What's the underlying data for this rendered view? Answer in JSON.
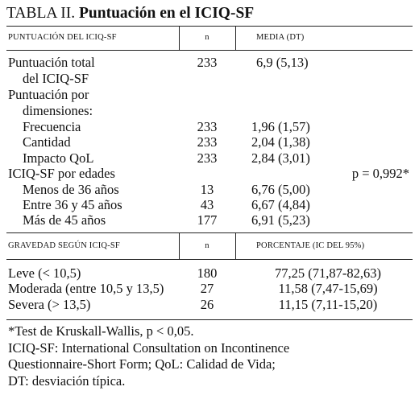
{
  "title": {
    "label": "TABLA II.",
    "text": "Puntuación en el ICIQ-SF"
  },
  "table1": {
    "header": [
      "PUNTUACIÓN DEL ICIQ-SF",
      "n",
      "MEDIA (DT)"
    ],
    "rows": [
      {
        "label": "Puntuación total",
        "n": "233",
        "value": "6,9 (5,13)"
      },
      {
        "label": "del ICIQ-SF"
      },
      {
        "label": "Puntuación por"
      },
      {
        "label": "dimensiones:"
      },
      {
        "label": "Frecuencia",
        "n": "233",
        "value": "1,96 (1,57)"
      },
      {
        "label": "Cantidad",
        "n": "233",
        "value": "2,04 (1,38)"
      },
      {
        "label": "Impacto QoL",
        "n": "233",
        "value": "2,84 (3,01)"
      },
      {
        "label": "ICIQ-SF por edades",
        "note": "p = 0,992*"
      },
      {
        "label": "Menos de 36 años",
        "n": "13",
        "value": "6,76 (5,00)"
      },
      {
        "label": "Entre 36 y 45 años",
        "n": "43",
        "value": "6,67 (4,84)"
      },
      {
        "label": "Más de 45 años",
        "n": "177",
        "value": "6,91 (5,23)"
      }
    ]
  },
  "table2": {
    "header": [
      "GRAVEDAD SEGÚN ICIQ-SF",
      "n",
      "PORCENTAJE (IC DEL 95%)"
    ],
    "rows": [
      {
        "label": "Leve (< 10,5)",
        "n": "180",
        "value": "77,25 (71,87-82,63)"
      },
      {
        "label": "Moderada (entre 10,5 y 13,5)",
        "n": "27",
        "value": "11,58 (7,47-15,69)"
      },
      {
        "label": "Severa (> 13,5)",
        "n": "26",
        "value": "11,15 (7,11-15,20)"
      }
    ]
  },
  "footnotes": [
    "*Test de Kruskall-Wallis, p < 0,05.",
    "ICIQ-SF: International Consultation on Incontinence",
    "Questionnaire-Short Form; QoL: Calidad de Vida;",
    "DT: desviación típica."
  ]
}
